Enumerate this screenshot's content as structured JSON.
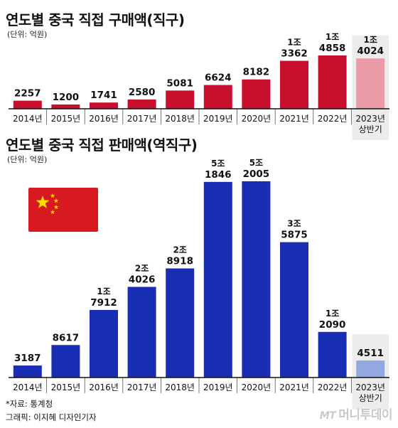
{
  "chart_data": [
    {
      "type": "bar",
      "title": "연도별 중국 직접 구매액(직구)",
      "unit_label": "(단위: 억원)",
      "categories": [
        "2014년",
        "2015년",
        "2016년",
        "2017년",
        "2018년",
        "2019년",
        "2020년",
        "2021년",
        "2022년",
        "2023년\n상반기"
      ],
      "values": [
        2257,
        1200,
        1741,
        2580,
        5081,
        6624,
        8182,
        13362,
        14858,
        14024
      ],
      "labels": [
        [
          "",
          "2257"
        ],
        [
          "",
          "1200"
        ],
        [
          "",
          "1741"
        ],
        [
          "",
          "2580"
        ],
        [
          "",
          "5081"
        ],
        [
          "",
          "6624"
        ],
        [
          "",
          "8182"
        ],
        [
          "1조",
          "3362"
        ],
        [
          "1조",
          "4858"
        ],
        [
          "1조",
          "4024"
        ]
      ],
      "colors": {
        "bar": "#c8102e",
        "highlight_bar": "#e99aa5",
        "highlight_bg": "#ececec"
      }
    },
    {
      "type": "bar",
      "title": "연도별 중국 직접 판매액(역직구)",
      "unit_label": "(단위: 억원)",
      "categories": [
        "2014년",
        "2015년",
        "2016년",
        "2017년",
        "2018년",
        "2019년",
        "2020년",
        "2021년",
        "2022년",
        "2023년\n상반기"
      ],
      "values": [
        3187,
        8617,
        17912,
        24026,
        28918,
        51846,
        52005,
        35875,
        12090,
        4511
      ],
      "labels": [
        [
          "",
          "3187"
        ],
        [
          "",
          "8617"
        ],
        [
          "1조",
          "7912"
        ],
        [
          "2조",
          "4026"
        ],
        [
          "2조",
          "8918"
        ],
        [
          "5조",
          "1846"
        ],
        [
          "5조",
          "2005"
        ],
        [
          "3조",
          "5875"
        ],
        [
          "1조",
          "2090"
        ],
        [
          "",
          "4511"
        ]
      ],
      "colors": {
        "bar": "#1a2db5",
        "highlight_bar": "#93a8e0",
        "highlight_bg": "#ececec"
      }
    }
  ],
  "footer": {
    "source": "*자료: 통계청",
    "graphic": "그래픽: 이지혜 디자인기자",
    "brand_mt": "MT",
    "brand_name": "머니투데이"
  }
}
